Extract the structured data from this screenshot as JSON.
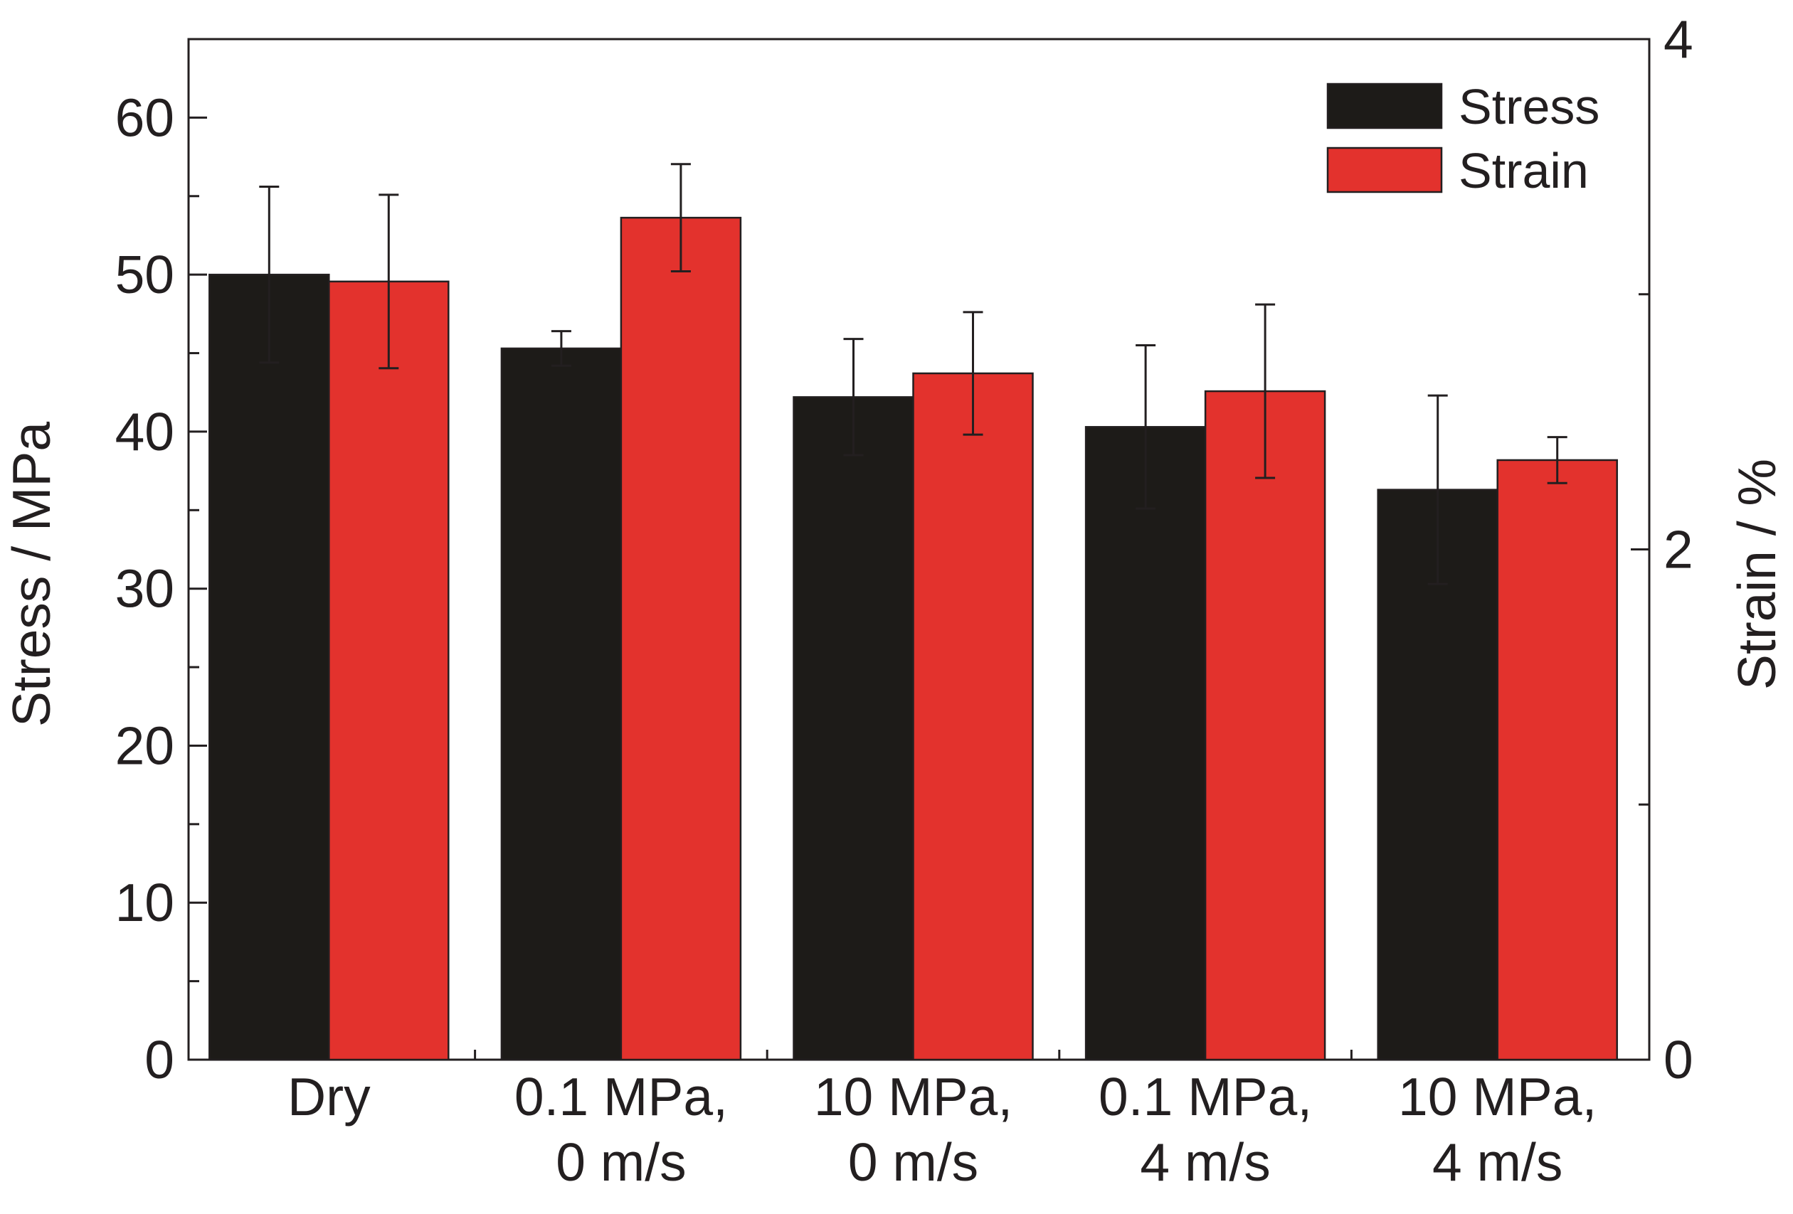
{
  "chart_data": {
    "type": "bar",
    "categories": [
      [
        "Dry"
      ],
      [
        "0.1 MPa,",
        "0 m/s"
      ],
      [
        "10 MPa,",
        "0 m/s"
      ],
      [
        "0.1 MPa,",
        "4 m/s"
      ],
      [
        "10 MPa,",
        "4 m/s"
      ]
    ],
    "series": [
      {
        "name": "Stress",
        "axis": "left",
        "color": "#1d1b18",
        "values": [
          50.0,
          45.3,
          42.2,
          40.3,
          36.3
        ],
        "errors": [
          5.6,
          1.1,
          3.7,
          5.2,
          6.0
        ]
      },
      {
        "name": "Strain",
        "axis": "right",
        "color": "#e3322d",
        "values": [
          3.05,
          3.3,
          2.69,
          2.62,
          2.35
        ],
        "errors": [
          0.34,
          0.21,
          0.24,
          0.34,
          0.09
        ]
      }
    ],
    "ylabel": "Stress / MPa",
    "y2label": "Strain / %",
    "ylim": [
      0,
      65
    ],
    "y2lim": [
      0,
      4
    ],
    "yticks": [
      0,
      10,
      20,
      30,
      40,
      50,
      60
    ],
    "y2ticks": [
      0,
      2,
      4
    ],
    "legend": {
      "position": "top-right",
      "entries": [
        "Stress",
        "Strain"
      ]
    },
    "grid": false
  }
}
